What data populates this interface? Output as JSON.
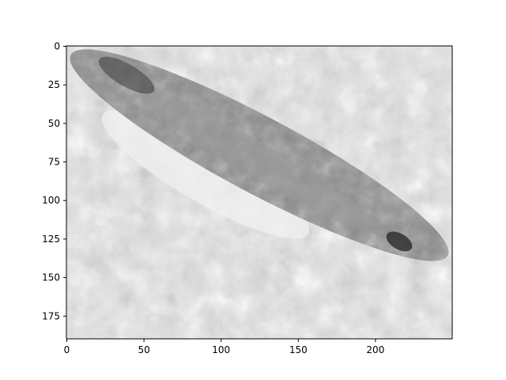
{
  "chart_data": {
    "type": "image",
    "title": "",
    "xlabel": "",
    "ylabel": "",
    "xlim": [
      0,
      249
    ],
    "ylim": [
      189,
      0
    ],
    "grid": false,
    "colormap": "grayscale",
    "x_ticks": [
      0,
      50,
      100,
      150,
      200
    ],
    "y_ticks": [
      0,
      25,
      50,
      75,
      100,
      125,
      150,
      175
    ],
    "overlay": {
      "shape": "ellipse",
      "description": "darker elliptical band running diagonally from top-left to right edge"
    }
  }
}
